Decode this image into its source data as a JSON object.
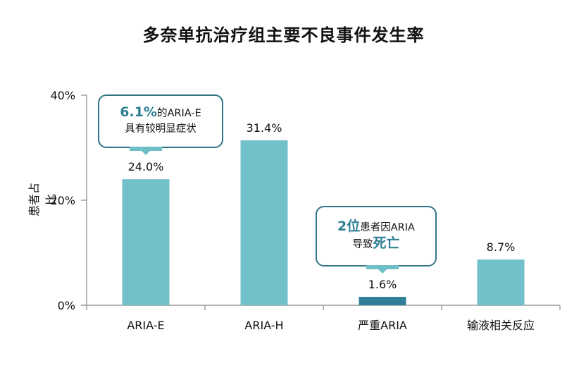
{
  "title": "多奈单抗治疗组主要不良事件发生率",
  "chart_data": {
    "type": "bar",
    "categories": [
      "ARIA-E",
      "ARIA-H",
      "严重ARIA",
      "输液相关反应"
    ],
    "values": [
      24.0,
      31.4,
      1.6,
      8.7
    ],
    "value_labels": [
      "24.0%",
      "31.4%",
      "1.6%",
      "8.7%"
    ],
    "bar_colors": [
      "#72c0ca",
      "#72c0ca",
      "#2f7f99",
      "#72c0ca"
    ],
    "ylabel": "患者占比",
    "ylim": [
      0,
      40
    ],
    "yticks": [
      0,
      20,
      40
    ],
    "ytick_labels": [
      "0%",
      "20%",
      "40%"
    ],
    "grid": false,
    "legend": "none"
  },
  "callouts": [
    {
      "highlight": "6.1%",
      "text1": "的ARIA-E",
      "line2": "具有较明显症状"
    },
    {
      "highlight": "2位",
      "text1": "患者因ARIA",
      "line2_pre": "导致",
      "line2_highlight": "死亡"
    }
  ]
}
